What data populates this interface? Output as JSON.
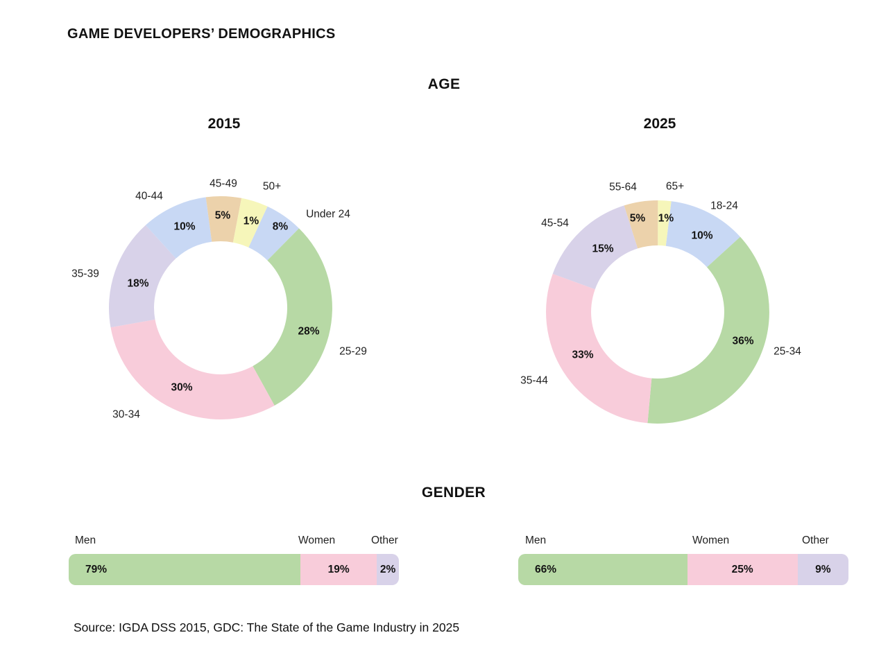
{
  "page": {
    "title": "GAME DEVELOPERS’ DEMOGRAPHICS",
    "section_age": "AGE",
    "section_gender": "GENDER",
    "source": "Source: IGDA DSS 2015, GDC: The State of the Game Industry in 2025"
  },
  "chart_data": [
    {
      "id": "age-2015",
      "type": "donut",
      "section": "AGE",
      "title": "2015",
      "unit": "%",
      "categories": [
        "Under 24",
        "25-29",
        "30-34",
        "35-39",
        "40-44",
        "45-49",
        "50+"
      ],
      "values": [
        8,
        28,
        30,
        18,
        10,
        5,
        1
      ],
      "colors": [
        "#c8d8f4",
        "#b7d9a5",
        "#f8ccda",
        "#d8d2e9",
        "#c8d8f4",
        "#ecd2ab",
        "#f6f6ba"
      ],
      "display_pct": [
        5.5,
        29.6,
        30.2,
        16.1,
        9.6,
        5.1,
        3.9
      ],
      "start_angle": 24.8,
      "legend_position": "around-slices"
    },
    {
      "id": "age-2025",
      "type": "donut",
      "section": "AGE",
      "title": "2025",
      "unit": "%",
      "categories": [
        "18-24",
        "25-34",
        "35-44",
        "45-54",
        "55-64",
        "65+"
      ],
      "values": [
        10,
        36,
        33,
        15,
        5,
        1
      ],
      "colors": [
        "#c8d8f4",
        "#b7d9a5",
        "#f8ccda",
        "#d8d2e9",
        "#ecd2ab",
        "#f6f6ba"
      ],
      "display_pct": [
        11.3,
        38.2,
        29.1,
        14.6,
        4.9,
        1.9
      ],
      "start_angle": 7,
      "legend_position": "around-slices"
    },
    {
      "id": "gender-2015",
      "type": "stacked-bar",
      "section": "GENDER",
      "year": "2015",
      "unit": "%",
      "categories": [
        "Men",
        "Women",
        "Other"
      ],
      "values": [
        79,
        19,
        2
      ],
      "colors": [
        "#b7d9a5",
        "#f8ccda",
        "#d8d2e9"
      ],
      "display_pct": [
        70.2,
        23.1,
        6.7
      ],
      "legend_position": "above-segments"
    },
    {
      "id": "gender-2025",
      "type": "stacked-bar",
      "section": "GENDER",
      "year": "2025",
      "unit": "%",
      "categories": [
        "Men",
        "Women",
        "Other"
      ],
      "values": [
        66,
        25,
        9
      ],
      "colors": [
        "#b7d9a5",
        "#f8ccda",
        "#d8d2e9"
      ],
      "display_pct": [
        51.2,
        33.4,
        15.4
      ],
      "legend_position": "above-segments"
    }
  ]
}
